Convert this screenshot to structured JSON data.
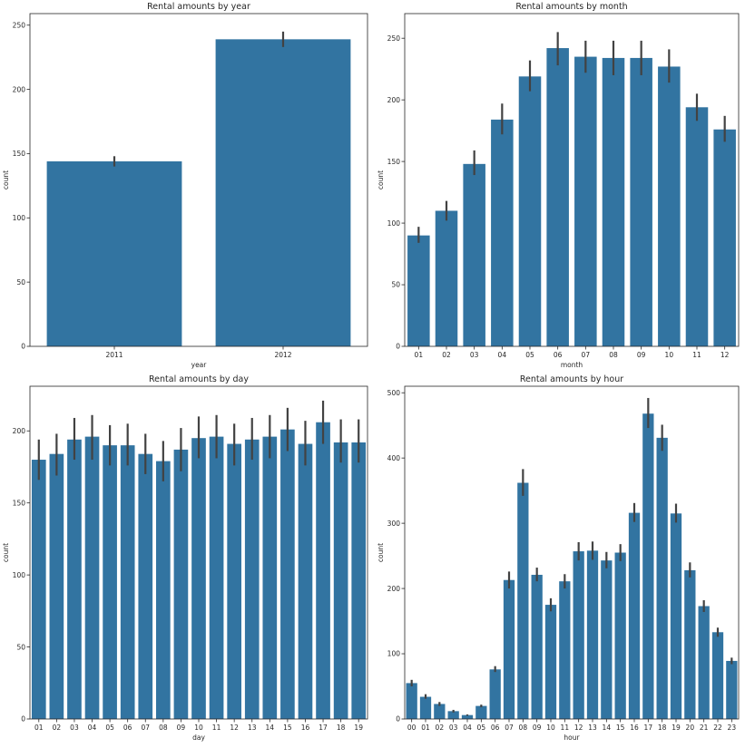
{
  "figure": {
    "title": ""
  },
  "chart_data": [
    {
      "type": "bar",
      "title": "Rental amounts by year",
      "xlabel": "year",
      "ylabel": "count",
      "categories": [
        "2011",
        "2012"
      ],
      "values": [
        144,
        239
      ],
      "errors": [
        [
          140,
          148
        ],
        [
          233,
          245
        ]
      ],
      "ylim": [
        0,
        259
      ],
      "yticks": [
        0,
        50,
        100,
        150,
        200,
        250
      ],
      "bar_color": "#3274a1",
      "error_color": "#424242",
      "grid": false
    },
    {
      "type": "bar",
      "title": "Rental amounts by month",
      "xlabel": "month",
      "ylabel": "count",
      "categories": [
        "01",
        "02",
        "03",
        "04",
        "05",
        "06",
        "07",
        "08",
        "09",
        "10",
        "11",
        "12"
      ],
      "values": [
        90,
        110,
        148,
        184,
        219,
        242,
        235,
        234,
        234,
        227,
        194,
        176
      ],
      "errors": [
        [
          84,
          97
        ],
        [
          102,
          118
        ],
        [
          139,
          159
        ],
        [
          172,
          197
        ],
        [
          207,
          232
        ],
        [
          228,
          255
        ],
        [
          222,
          248
        ],
        [
          220,
          248
        ],
        [
          220,
          248
        ],
        [
          214,
          241
        ],
        [
          183,
          205
        ],
        [
          166,
          187
        ]
      ],
      "ylim": [
        0,
        270
      ],
      "yticks": [
        0,
        50,
        100,
        150,
        200,
        250
      ],
      "bar_color": "#3274a1",
      "error_color": "#424242",
      "grid": false
    },
    {
      "type": "bar",
      "title": "Rental amounts by day",
      "xlabel": "day",
      "ylabel": "count",
      "categories": [
        "01",
        "02",
        "03",
        "04",
        "05",
        "06",
        "07",
        "08",
        "09",
        "10",
        "11",
        "12",
        "13",
        "14",
        "15",
        "16",
        "17",
        "18",
        "19"
      ],
      "values": [
        180,
        184,
        194,
        196,
        190,
        190,
        184,
        179,
        187,
        195,
        196,
        191,
        194,
        196,
        201,
        191,
        206,
        192,
        192
      ],
      "errors": [
        [
          166,
          194
        ],
        [
          169,
          198
        ],
        [
          180,
          209
        ],
        [
          180,
          211
        ],
        [
          176,
          204
        ],
        [
          176,
          205
        ],
        [
          170,
          198
        ],
        [
          165,
          193
        ],
        [
          172,
          202
        ],
        [
          181,
          210
        ],
        [
          181,
          211
        ],
        [
          176,
          205
        ],
        [
          180,
          209
        ],
        [
          181,
          211
        ],
        [
          186,
          216
        ],
        [
          176,
          207
        ],
        [
          191,
          221
        ],
        [
          178,
          208
        ],
        [
          178,
          208
        ]
      ],
      "ylim": [
        0,
        231
      ],
      "yticks": [
        0,
        50,
        100,
        150,
        200
      ],
      "bar_color": "#3274a1",
      "error_color": "#424242",
      "grid": false
    },
    {
      "type": "bar",
      "title": "Rental amounts by hour",
      "xlabel": "hour",
      "ylabel": "count",
      "categories": [
        "00",
        "01",
        "02",
        "03",
        "04",
        "05",
        "06",
        "07",
        "08",
        "09",
        "10",
        "11",
        "12",
        "13",
        "14",
        "15",
        "16",
        "17",
        "18",
        "19",
        "20",
        "21",
        "22",
        "23"
      ],
      "values": [
        55,
        34,
        23,
        12,
        6,
        20,
        76,
        213,
        362,
        221,
        175,
        211,
        257,
        258,
        243,
        255,
        316,
        468,
        431,
        315,
        228,
        173,
        133,
        89
      ],
      "errors": [
        [
          50,
          60
        ],
        [
          31,
          38
        ],
        [
          20,
          26
        ],
        [
          10,
          14
        ],
        [
          5,
          7
        ],
        [
          18,
          22
        ],
        [
          72,
          81
        ],
        [
          200,
          226
        ],
        [
          342,
          383
        ],
        [
          211,
          232
        ],
        [
          165,
          185
        ],
        [
          200,
          222
        ],
        [
          243,
          271
        ],
        [
          244,
          272
        ],
        [
          231,
          256
        ],
        [
          242,
          268
        ],
        [
          302,
          331
        ],
        [
          446,
          492
        ],
        [
          411,
          451
        ],
        [
          301,
          330
        ],
        [
          217,
          240
        ],
        [
          164,
          182
        ],
        [
          126,
          140
        ],
        [
          84,
          94
        ]
      ],
      "ylim": [
        0,
        510
      ],
      "yticks": [
        0,
        100,
        200,
        300,
        400,
        500
      ],
      "bar_color": "#3274a1",
      "error_color": "#424242",
      "grid": false
    }
  ]
}
